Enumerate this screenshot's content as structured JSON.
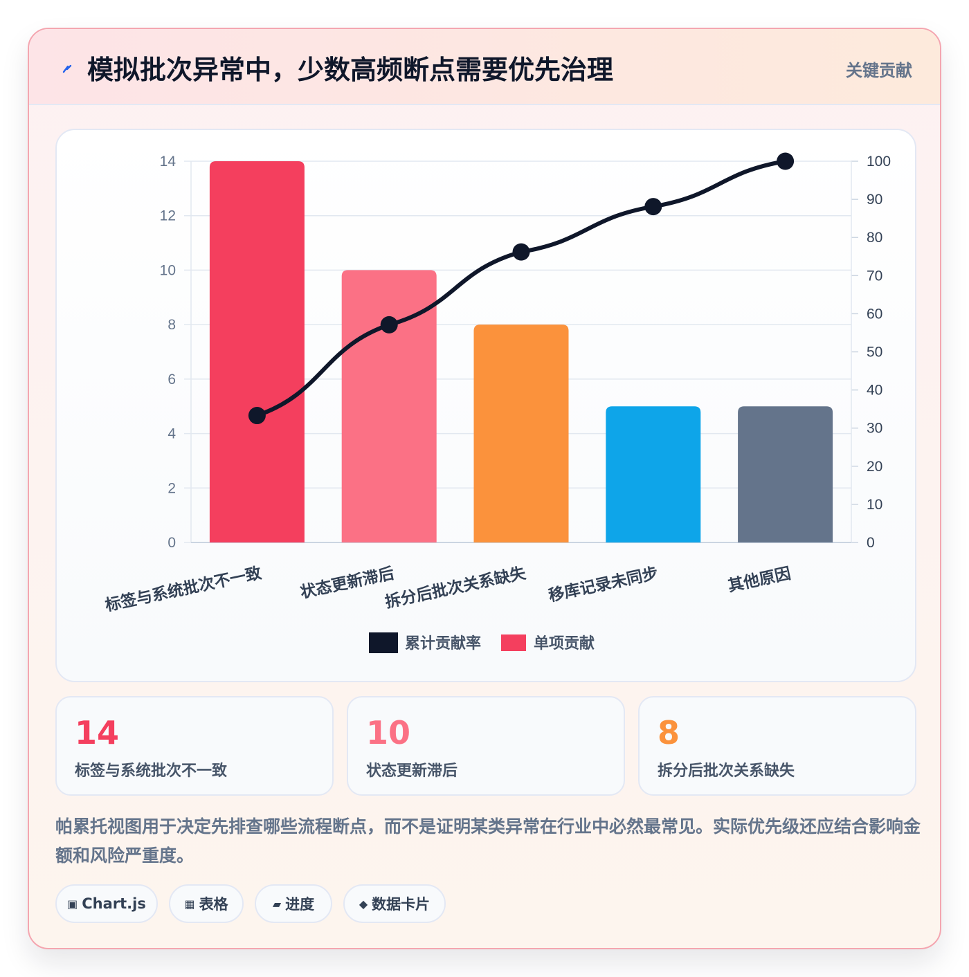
{
  "header": {
    "title": "模拟批次异常中，少数高频断点需要优先治理",
    "tag": "关键贡献",
    "accent": "#2563eb"
  },
  "chart_data": {
    "type": "bar",
    "categories": [
      "标签与系统批次不一致",
      "状态更新滞后",
      "拆分后批次关系缺失",
      "移库记录未同步",
      "其他原因"
    ],
    "series": [
      {
        "name": "单项贡献",
        "type": "bar",
        "axis": "left",
        "values": [
          14,
          10,
          8,
          5,
          5
        ],
        "colors": [
          "#f43f5e",
          "#fb7185",
          "#fb923c",
          "#0ea5e9",
          "#64748b"
        ]
      },
      {
        "name": "累计贡献率",
        "type": "line",
        "axis": "right",
        "values": [
          33.3,
          57.1,
          76.2,
          88.1,
          100
        ],
        "color": "#0f172a"
      }
    ],
    "y_left": {
      "min": 0,
      "max": 14,
      "ticks": [
        "0",
        "2",
        "4",
        "6",
        "8",
        "10",
        "12",
        "14"
      ]
    },
    "y_right": {
      "min": 0,
      "max": 100,
      "ticks": [
        "0",
        "10",
        "20",
        "30",
        "40",
        "50",
        "60",
        "70",
        "80",
        "90",
        "100"
      ]
    },
    "legend": [
      "累计贡献率",
      "单项贡献"
    ],
    "legend_position": "bottom",
    "grid": true
  },
  "stats": [
    {
      "value": "14",
      "label": "标签与系统批次不一致",
      "color": "#f43f5e"
    },
    {
      "value": "10",
      "label": "状态更新滞后",
      "color": "#fb7185"
    },
    {
      "value": "8",
      "label": "拆分后批次关系缺失",
      "color": "#fb923c"
    }
  ],
  "note": "帕累托视图用于决定先排查哪些流程断点，而不是证明某类异常在行业中必然最常见。实际优先级还应结合影响金额和风险严重度。",
  "chips": [
    {
      "icon": "▣",
      "label": "Chart.js"
    },
    {
      "icon": "▦",
      "label": "表格"
    },
    {
      "icon": "▰",
      "label": "进度"
    },
    {
      "icon": "◆",
      "label": "数据卡片"
    }
  ]
}
